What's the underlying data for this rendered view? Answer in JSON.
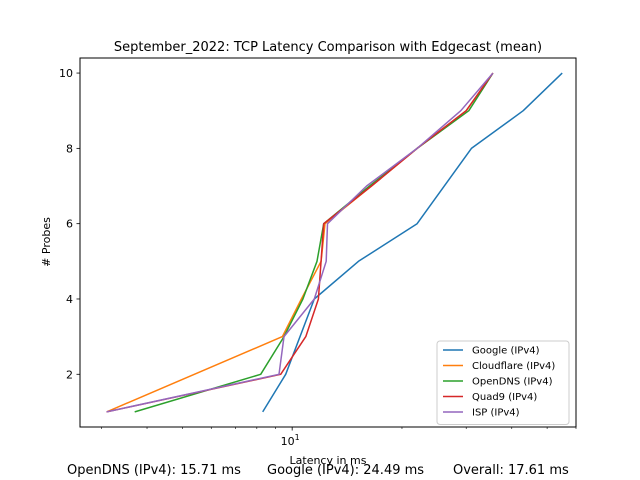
{
  "chart_data": {
    "type": "line",
    "title": "September_2022: TCP Latency Comparison with Edgecast (mean)",
    "xlabel": "Latency in ms",
    "ylabel": "# Probes",
    "xscale": "log",
    "xlim": [
      2.62,
      60.0
    ],
    "ylim": [
      0.6,
      10.4
    ],
    "x_tick_labels": [
      {
        "value": 10,
        "label": "10^1"
      }
    ],
    "y_ticks": [
      2,
      4,
      6,
      8,
      10
    ],
    "legend_position": "lower-right",
    "series": [
      {
        "name": "Google (IPv4)",
        "color": "#1f77b4",
        "x": [
          8.3,
          9.6,
          11.5,
          15.2,
          22.0,
          31.0,
          43.0,
          55.0
        ],
        "y": [
          1,
          2,
          4,
          5,
          6,
          8,
          9,
          10
        ]
      },
      {
        "name": "Cloudflare (IPv4)",
        "color": "#ff7f0e",
        "x": [
          3.1,
          9.4,
          10.6,
          12.0,
          12.3,
          16.5,
          22.0,
          30.0,
          35.5
        ],
        "y": [
          1,
          3,
          4,
          5,
          6,
          7,
          8,
          9,
          10
        ]
      },
      {
        "name": "OpenDNS (IPv4)",
        "color": "#2ca02c",
        "x": [
          3.7,
          8.2,
          9.5,
          10.7,
          11.7,
          12.2,
          16.3,
          22.0,
          30.5,
          35.5
        ],
        "y": [
          1,
          2,
          3,
          4,
          5,
          6,
          7,
          8,
          9,
          10
        ]
      },
      {
        "name": "Quad9 (IPv4)",
        "color": "#d62728",
        "x": [
          3.1,
          9.3,
          10.9,
          11.8,
          12.2,
          16.5,
          22.0,
          30.0,
          35.5
        ],
        "y": [
          1,
          2,
          3,
          4,
          6,
          7,
          8,
          9,
          10
        ]
      },
      {
        "name": "ISP (IPv4)",
        "color": "#9467bd",
        "x": [
          3.1,
          9.2,
          9.5,
          11.5,
          12.4,
          12.5,
          16.0,
          22.0,
          29.0,
          35.5
        ],
        "y": [
          1,
          2,
          3,
          4,
          5,
          6,
          7,
          8,
          9,
          10
        ]
      }
    ]
  },
  "footer": {
    "opendns": "OpenDNS (IPv4): 15.71 ms",
    "google": "Google (IPv4): 24.49 ms",
    "overall": "Overall: 17.61 ms"
  }
}
